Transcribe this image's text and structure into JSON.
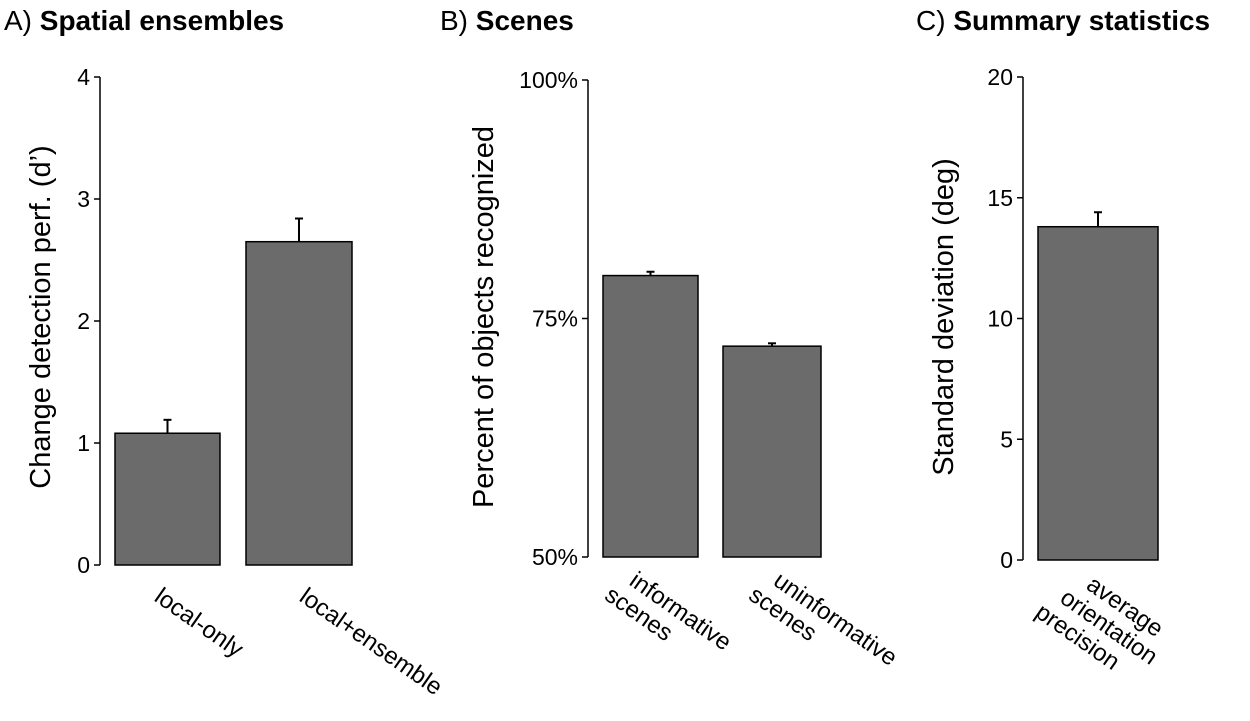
{
  "chart_data": [
    {
      "type": "bar",
      "panel_letter": "A)",
      "title": "Spatial ensembles",
      "ylabel": "Change detection perf. (d’)",
      "ylim": [
        0,
        4
      ],
      "yticks": [
        "0",
        "1",
        "2",
        "3",
        "4"
      ],
      "categories": [
        "local-only",
        "local+ensemble"
      ],
      "values": [
        1.08,
        2.65
      ],
      "errors": [
        0.11,
        0.19
      ],
      "bar_color": "#6b6b6b"
    },
    {
      "type": "bar",
      "panel_letter": "B)",
      "title": "Scenes",
      "ylabel": "Percent of objects recognized",
      "ylim": [
        50,
        100
      ],
      "yticks": [
        "50%",
        "75%",
        "100%"
      ],
      "categories": [
        [
          "informative",
          "scenes"
        ],
        [
          "uninformative",
          "scenes"
        ]
      ],
      "values": [
        79.5,
        72.1
      ],
      "errors": [
        0.4,
        0.3
      ],
      "bar_color": "#6b6b6b"
    },
    {
      "type": "bar",
      "panel_letter": "C)",
      "title": "Summary statistics",
      "ylabel": "Standard deviation (deg)",
      "ylim": [
        0,
        20
      ],
      "yticks": [
        "0",
        "5",
        "10",
        "15",
        "20"
      ],
      "categories": [
        [
          "average",
          "orientation",
          "precision"
        ]
      ],
      "values": [
        13.8
      ],
      "errors": [
        0.6
      ],
      "bar_color": "#6b6b6b"
    }
  ]
}
